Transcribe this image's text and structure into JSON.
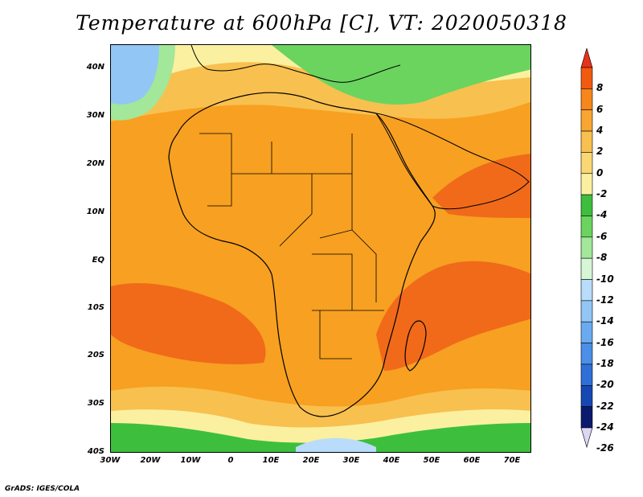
{
  "title": "Temperature at 600hPa [C], VT: 2020050318",
  "credit": "GrADS: IGES/COLA",
  "map": {
    "lon_range": [
      -30,
      75
    ],
    "lat_range": [
      -40,
      45
    ],
    "lat_labels": [
      "40N",
      "30N",
      "20N",
      "10N",
      "EQ",
      "10S",
      "20S",
      "30S",
      "40S"
    ],
    "lon_labels": [
      "30W",
      "20W",
      "10W",
      "0",
      "10E",
      "20E",
      "30E",
      "40E",
      "50E",
      "60E",
      "70E"
    ]
  },
  "colorbar": {
    "levels": [
      "8",
      "6",
      "4",
      "2",
      "0",
      "-2",
      "-4",
      "-6",
      "-8",
      "-10",
      "-12",
      "-14",
      "-16",
      "-18",
      "-20",
      "-22",
      "-24",
      "-26"
    ],
    "colors": [
      "#e8321a",
      "#f25a0f",
      "#f7861b",
      "#f9a531",
      "#f8c04f",
      "#f9d873",
      "#fbf0a0",
      "#3dbf3d",
      "#6ad45e",
      "#a2e79a",
      "#d6f6d6",
      "#b8dcfa",
      "#92c6f5",
      "#6aaaf0",
      "#4a8fe8",
      "#2f70d8",
      "#1648b4",
      "#0a1a6e",
      "#dcd6f5"
    ]
  }
}
